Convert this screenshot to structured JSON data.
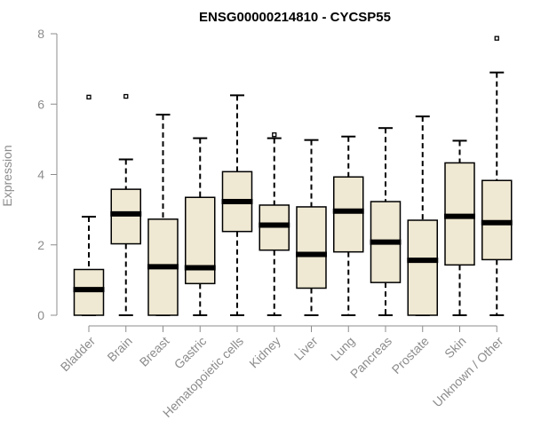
{
  "chart_data": {
    "type": "boxplot",
    "title": "ENSG00000214810 - CYCSP55",
    "xlabel": "",
    "ylabel": "Expression",
    "ylim": [
      0,
      8
    ],
    "yticks": [
      0,
      2,
      4,
      6,
      8
    ],
    "grid": false,
    "box_fill": "#efe8d2",
    "categories": [
      "Bladder",
      "Brain",
      "Breast",
      "Gastric",
      "Hematopoietic cells",
      "Kidney",
      "Liver",
      "Lung",
      "Pancreas",
      "Prostate",
      "Skin",
      "Unknown / Other"
    ],
    "boxes": [
      {
        "min": 0,
        "q1": 0,
        "median": 0.73,
        "q3": 1.3,
        "max": 2.8,
        "outliers": [
          6.2
        ]
      },
      {
        "min": 0,
        "q1": 2.03,
        "median": 2.88,
        "q3": 3.58,
        "max": 4.43,
        "outliers": [
          6.22
        ]
      },
      {
        "min": 0,
        "q1": 0,
        "median": 1.38,
        "q3": 2.73,
        "max": 5.7,
        "outliers": []
      },
      {
        "min": 0,
        "q1": 0.9,
        "median": 1.35,
        "q3": 3.35,
        "max": 5.03,
        "outliers": []
      },
      {
        "min": 0,
        "q1": 2.38,
        "median": 3.23,
        "q3": 4.08,
        "max": 6.25,
        "outliers": []
      },
      {
        "min": 0,
        "q1": 1.85,
        "median": 2.56,
        "q3": 3.13,
        "max": 5.03,
        "outliers": [
          5.13
        ]
      },
      {
        "min": 0,
        "q1": 0.77,
        "median": 1.73,
        "q3": 3.08,
        "max": 4.98,
        "outliers": []
      },
      {
        "min": 0,
        "q1": 1.8,
        "median": 2.96,
        "q3": 3.93,
        "max": 5.08,
        "outliers": []
      },
      {
        "min": 0,
        "q1": 0.93,
        "median": 2.08,
        "q3": 3.23,
        "max": 5.32,
        "outliers": []
      },
      {
        "min": 0,
        "q1": 0,
        "median": 1.56,
        "q3": 2.7,
        "max": 5.65,
        "outliers": []
      },
      {
        "min": 0,
        "q1": 1.43,
        "median": 2.81,
        "q3": 4.33,
        "max": 4.96,
        "outliers": []
      },
      {
        "min": 0,
        "q1": 1.58,
        "median": 2.63,
        "q3": 3.83,
        "max": 6.9,
        "outliers": [
          7.87
        ]
      }
    ]
  }
}
